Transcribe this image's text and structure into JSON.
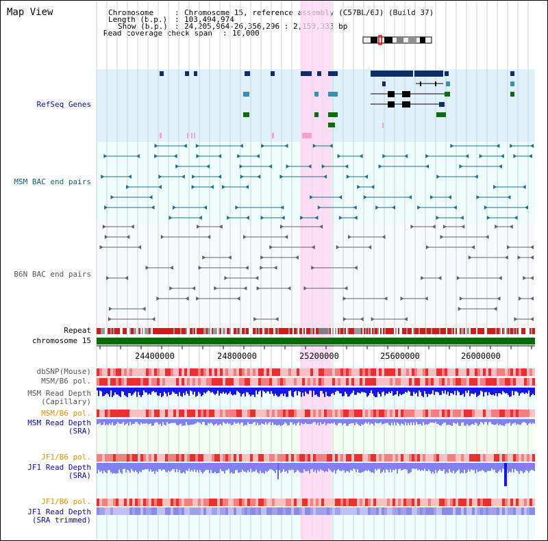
{
  "view_title": "Map View",
  "header": {
    "chromosome_key": "Chromosome",
    "chromosome_value": "Chromosome 15, reference assembly (C57BL/6J) (Build 37)",
    "length_key": "Length (b.p.)",
    "length_value": "103,494,974",
    "show_key": "Show (b.p.)",
    "show_value": "24,205,964-26,356,296 : 2,150,333 bp",
    "coverage_key": "Read coverage check span",
    "coverage_value": "10,000"
  },
  "tracks": {
    "refseq": "RefSeq Genes",
    "msm_bac": "MSM BAC end pairs",
    "b6n_bac": "B6N BAC end pairs",
    "repeat": "Repeat",
    "chromosome": "chromosome 15",
    "dbsnp": "dbSNP(Mouse)",
    "msm_b6_pol_1": "MSM/B6 pol.",
    "msm_depth_cap_1": "MSM Read Depth",
    "msm_depth_cap_2": "(Capillary)",
    "msm_b6_pol_2": "MSM/B6 pol.",
    "msm_depth_sra_1": "MSM Read Depth",
    "msm_depth_sra_2": "(SRA)",
    "jf1_b6_pol_1": "JF1/B6 pol.",
    "jf1_depth_sra_1": "JF1 Read Depth",
    "jf1_depth_sra_2": "(SRA)",
    "jf1_b6_pol_2": "JF1/B6 pol.",
    "jf1_depth_trim_1": "JF1 Read Depth",
    "jf1_depth_trim_2": "(SRA trimmed)"
  },
  "axis_ticks": [
    "24400000",
    "24800000",
    "25200000",
    "25600000",
    "26000000"
  ],
  "colors": {
    "refseq_bg": "#dff1fb",
    "bac_bg": "#eefcfc",
    "b6n_bg": "#f6f9fd",
    "highlight": "#ffd6f2",
    "gene_dark": "#0e2c66",
    "gene_teal": "#3b8fb0",
    "gene_green": "#0d6b0d",
    "bac_line": "#1a6f8a",
    "b6n_line": "#606060",
    "chromosome_bar": "#036b03",
    "depth_blue": "#1515e8",
    "depth_light": "#8080f0",
    "label_navy": "#0a0aa0",
    "label_teal": "#10607a",
    "label_gray": "#555555",
    "label_orange": "#e09000"
  }
}
